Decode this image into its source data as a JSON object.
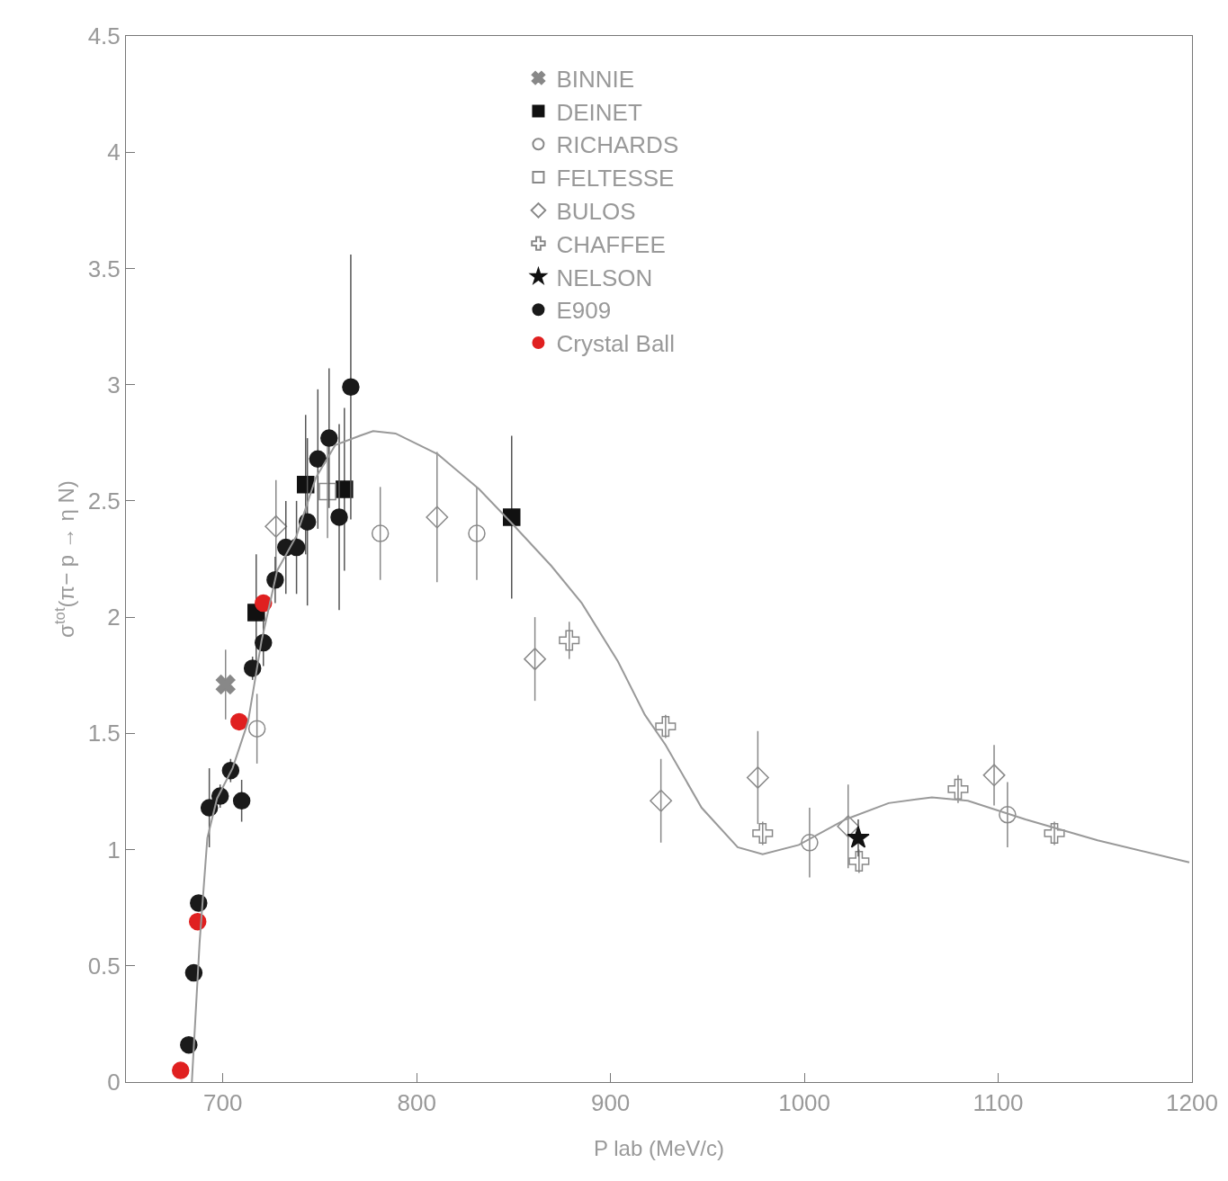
{
  "chart_data": {
    "type": "scatter",
    "xlabel": "P lab (MeV/c)",
    "ylabel": "σ$^{tot}$(π− p → η N)",
    "xlim": [
      650,
      1200
    ],
    "ylim": [
      0,
      4.5
    ],
    "xticks": [
      700,
      800,
      900,
      1000,
      1100,
      1200
    ],
    "yticks": [
      0,
      0.5,
      1,
      1.5,
      2,
      2.5,
      3,
      3.5,
      4,
      4.5
    ],
    "grid": false,
    "legend": "top",
    "series": [
      {
        "name": "BINNIE",
        "color": "#888888",
        "marker": "cross",
        "x": [
          701.4
        ],
        "values": [
          1.71
        ],
        "errors": [
          0.15
        ]
      },
      {
        "name": "DEINET",
        "color": "#111111",
        "marker": "square",
        "x": [
          717.2,
          742.7,
          762.7,
          849
        ],
        "values": [
          2.02,
          2.57,
          2.55,
          2.43
        ],
        "errors": [
          0.25,
          0.3,
          0.35,
          0.35
        ]
      },
      {
        "name": "RICHARDS",
        "color": "#888888",
        "marker": "circle-open",
        "x": [
          717.6,
          781.2,
          831,
          1002.7,
          1104.8
        ],
        "values": [
          1.52,
          2.36,
          2.36,
          1.03,
          1.15
        ],
        "errors": [
          0.15,
          0.2,
          0.2,
          0.15,
          0.14
        ]
      },
      {
        "name": "FELTESSE",
        "color": "#888888",
        "marker": "square-open",
        "x": [
          754
        ],
        "values": [
          2.54
        ],
        "errors": [
          0.2
        ]
      },
      {
        "name": "BULOS",
        "color": "#888888",
        "marker": "diamond-open",
        "x": [
          727.4,
          810.5,
          861,
          926,
          976,
          1022.6,
          1097.9
        ],
        "values": [
          2.39,
          2.43,
          1.82,
          1.21,
          1.31,
          1.1,
          1.32
        ],
        "errors": [
          0.2,
          0.28,
          0.18,
          0.18,
          0.2,
          0.18,
          0.13
        ]
      },
      {
        "name": "CHAFFEE",
        "color": "#888888",
        "marker": "cross-open",
        "x": [
          878.7,
          928.4,
          978.5,
          1028.2,
          1079.3,
          1129
        ],
        "values": [
          1.9,
          1.53,
          1.07,
          0.95,
          1.26,
          1.07
        ],
        "errors": [
          0.08,
          0.05,
          0.05,
          0.05,
          0.06,
          0.05
        ]
      },
      {
        "name": "NELSON",
        "color": "#111111",
        "marker": "star",
        "x": [
          1027.8
        ],
        "values": [
          1.05
        ],
        "errors": [
          0.08
        ]
      },
      {
        "name": "E909",
        "color": "#1a1a1a",
        "marker": "circle",
        "x": [
          682.4,
          685,
          687.5,
          693,
          698.6,
          704,
          709.7,
          715.3,
          720.9,
          727,
          732.5,
          738,
          743.6,
          749,
          754.8,
          760,
          766
        ],
        "values": [
          0.16,
          0.47,
          0.77,
          1.18,
          1.23,
          1.34,
          1.21,
          1.78,
          1.89,
          2.16,
          2.3,
          2.3,
          2.41,
          2.68,
          2.77,
          2.43,
          2.99
        ],
        "errors": [
          0.02,
          0.03,
          0.03,
          0.17,
          0.05,
          0.05,
          0.09,
          0.05,
          0.1,
          0.1,
          0.2,
          0.2,
          0.36,
          0.3,
          0.3,
          0.4,
          0.57
        ]
      },
      {
        "name": "Crystal Ball",
        "color": "#e02020",
        "marker": "circle",
        "x": [
          678.2,
          687,
          708.4,
          720.9
        ],
        "values": [
          0.05,
          0.69,
          1.55,
          2.06
        ]
      },
      {
        "type": "line",
        "color": "#999999",
        "marker": "none",
        "x": [
          684,
          688,
          692,
          697,
          705,
          713,
          720,
          728,
          738,
          748,
          758,
          770.6,
          777.5,
          789.1,
          811,
          832.3,
          849.5,
          869.5,
          885.2,
          903.8,
          917.7,
          928.4,
          947,
          965.6,
          978.5,
          997.1,
          1021.3,
          1043.5,
          1065.8,
          1084.4,
          1114.1,
          1151.3,
          1198.6
        ],
        "values": [
          0,
          0.6,
          1.05,
          1.22,
          1.35,
          1.55,
          1.9,
          2.2,
          2.35,
          2.6,
          2.74,
          2.78,
          2.8,
          2.79,
          2.7,
          2.55,
          2.4,
          2.22,
          2.06,
          1.81,
          1.58,
          1.45,
          1.18,
          1.01,
          0.98,
          1.02,
          1.13,
          1.2,
          1.225,
          1.21,
          1.13,
          1.04,
          0.945
        ]
      }
    ]
  }
}
